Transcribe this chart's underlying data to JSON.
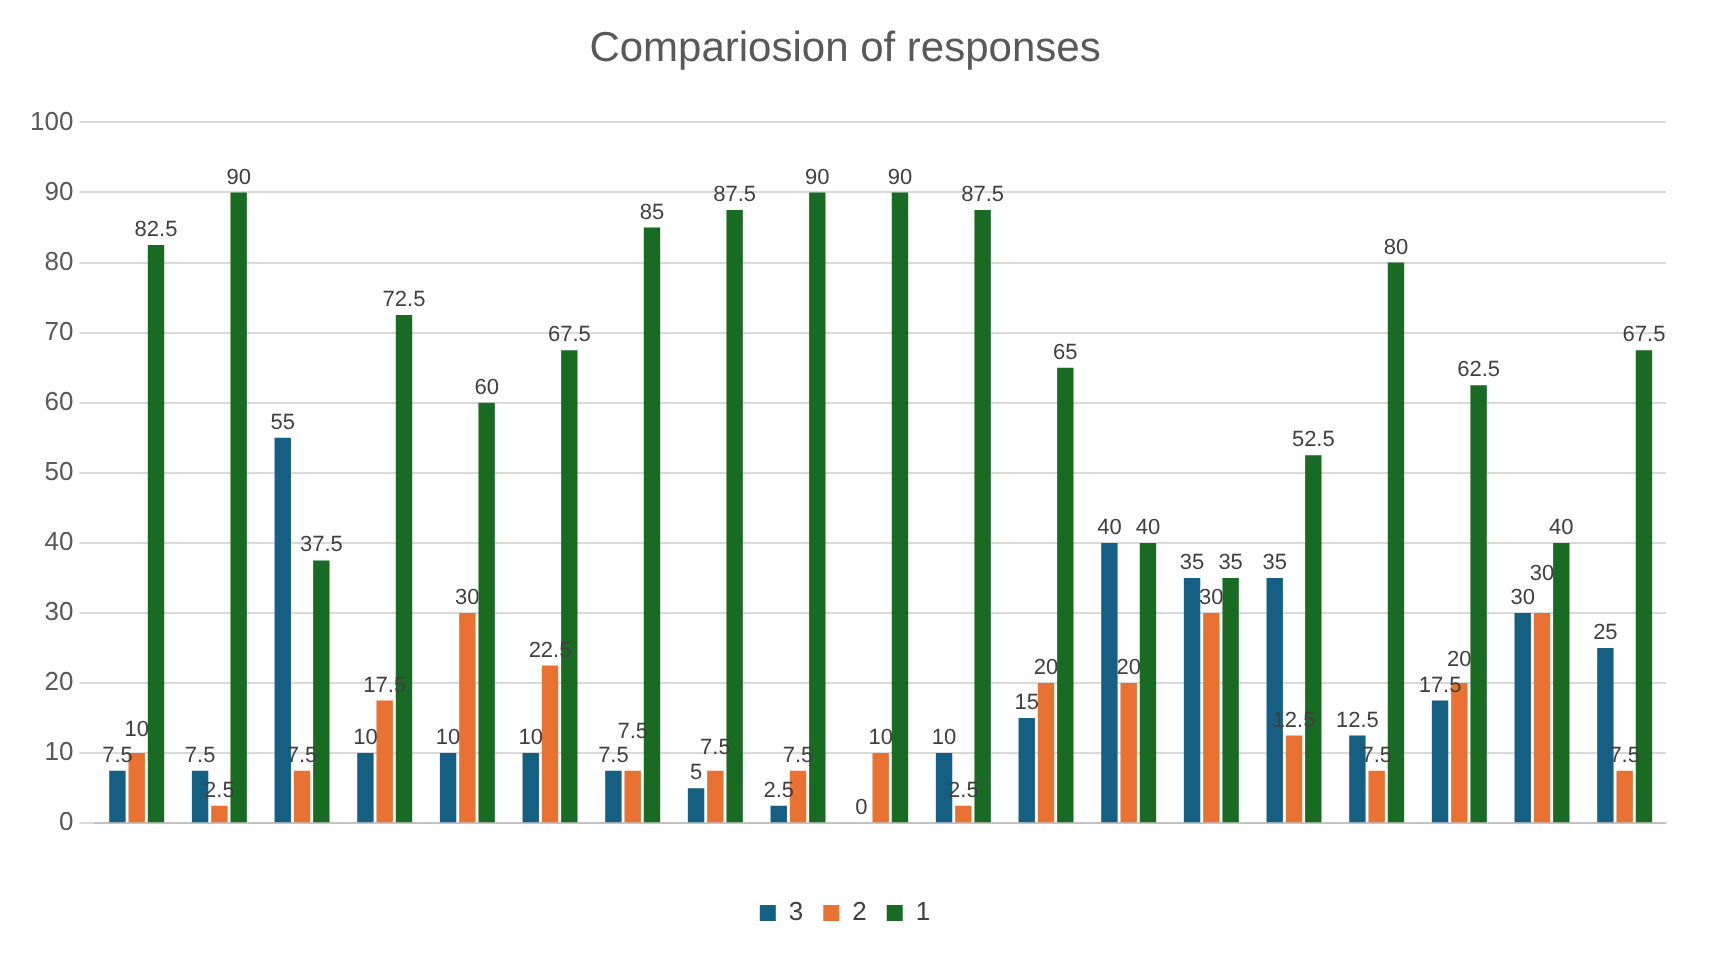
{
  "chart_data": {
    "type": "bar",
    "title": "Compariosion of responses",
    "categories": [
      null,
      null,
      null,
      null,
      null,
      null,
      null,
      null,
      null,
      null,
      null,
      null,
      null,
      null,
      null,
      null,
      null,
      null,
      null
    ],
    "series": [
      {
        "name": "3",
        "color": "#156082",
        "values": [
          7.5,
          7.5,
          55,
          10,
          10,
          10,
          7.5,
          5,
          2.5,
          0,
          10,
          15,
          40,
          35,
          35,
          12.5,
          17.5,
          30,
          25
        ]
      },
      {
        "name": "2",
        "color": "#e97132",
        "values": [
          10,
          2.5,
          7.5,
          17.5,
          30,
          22.5,
          7.5,
          7.5,
          7.5,
          10,
          2.5,
          20,
          20,
          30,
          12.5,
          7.5,
          20,
          30,
          7.5
        ]
      },
      {
        "name": "1",
        "color": "#196b24",
        "values": [
          82.5,
          90,
          37.5,
          72.5,
          60,
          67.5,
          85,
          87.5,
          90,
          90,
          87.5,
          65,
          40,
          35,
          52.5,
          80,
          62.5,
          40,
          67.5
        ]
      }
    ],
    "ylim": [
      0,
      100
    ],
    "yticks": [
      0,
      10,
      20,
      30,
      40,
      50,
      60,
      70,
      80,
      90,
      100
    ],
    "grid": "y",
    "legend": "bottom",
    "data_labels": true
  }
}
